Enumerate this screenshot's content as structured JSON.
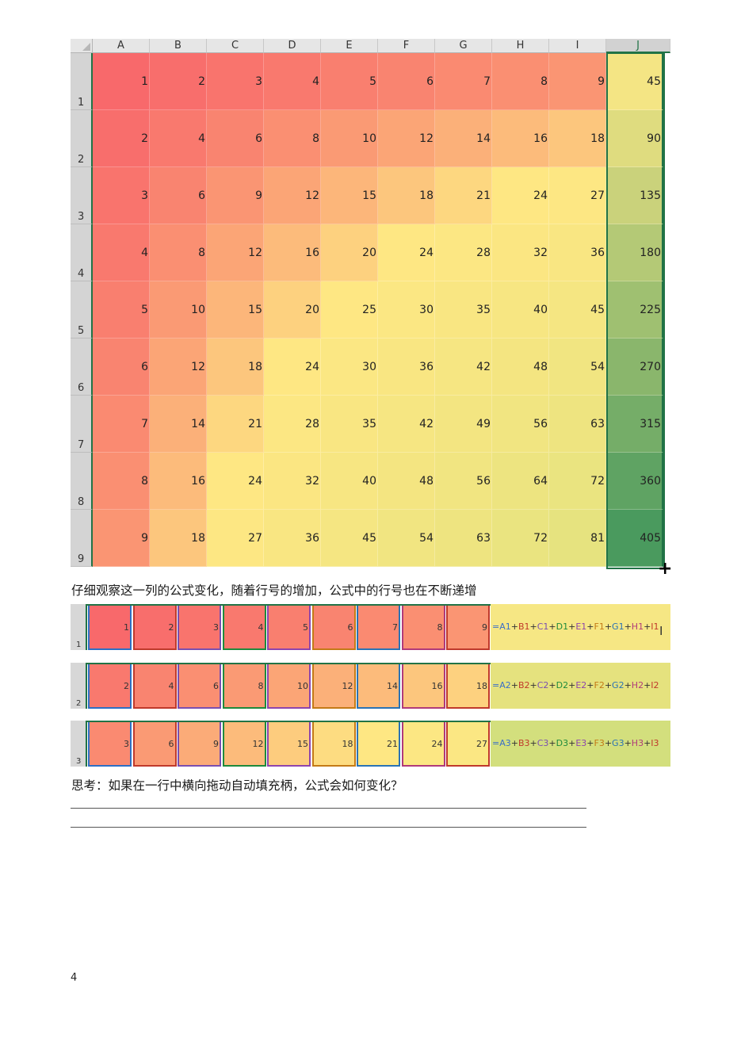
{
  "sheet": {
    "columns": [
      "A",
      "B",
      "C",
      "D",
      "E",
      "F",
      "G",
      "H",
      "I",
      "J"
    ],
    "rows": [
      "1",
      "2",
      "3",
      "4",
      "5",
      "6",
      "7",
      "8",
      "9"
    ],
    "values": [
      [
        1,
        2,
        3,
        4,
        5,
        6,
        7,
        8,
        9,
        45
      ],
      [
        2,
        4,
        6,
        8,
        10,
        12,
        14,
        16,
        18,
        90
      ],
      [
        3,
        6,
        9,
        12,
        15,
        18,
        21,
        24,
        27,
        135
      ],
      [
        4,
        8,
        12,
        16,
        20,
        24,
        28,
        32,
        36,
        180
      ],
      [
        5,
        10,
        15,
        20,
        25,
        30,
        35,
        40,
        45,
        225
      ],
      [
        6,
        12,
        18,
        24,
        30,
        36,
        42,
        48,
        54,
        270
      ],
      [
        7,
        14,
        21,
        28,
        35,
        42,
        49,
        56,
        63,
        315
      ],
      [
        8,
        16,
        24,
        32,
        40,
        48,
        56,
        64,
        72,
        360
      ],
      [
        9,
        18,
        27,
        36,
        45,
        54,
        63,
        72,
        81,
        405
      ]
    ],
    "selected_column": "J",
    "fill_handle_icon": "crosshair-plus-icon",
    "colors": {
      "low": "#f8696b",
      "mid": "#fee783",
      "sum_low": "#f4e584",
      "sum_high": "#4a9a5e",
      "selection": "#217346"
    }
  },
  "text1": "仔细观察这一列的公式变化，随着行号的增加，公式中的行号也在不断递增",
  "strips": [
    {
      "row": "1",
      "values": [
        1,
        2,
        3,
        4,
        5,
        6,
        7,
        8,
        9
      ],
      "formula_parts": [
        "=A1",
        "+",
        "B1",
        "+",
        "C1",
        "+",
        "D1",
        "+",
        "E1",
        "+",
        "F1",
        "+",
        "G1",
        "+",
        "H1",
        "+",
        "I1"
      ],
      "formula_bg": "#f6e784"
    },
    {
      "row": "2",
      "values": [
        2,
        4,
        6,
        8,
        10,
        12,
        14,
        16,
        18
      ],
      "formula_parts": [
        "=A2",
        "+",
        "B2",
        "+",
        "C2",
        "+",
        "D2",
        "+",
        "E2",
        "+",
        "F2",
        "+",
        "G2",
        "+",
        "H2",
        "+",
        "I2"
      ],
      "formula_bg": "#e5e27e"
    },
    {
      "row": "3",
      "values": [
        3,
        6,
        9,
        12,
        15,
        18,
        21,
        24,
        27
      ],
      "formula_parts": [
        "=A3",
        "+",
        "B3",
        "+",
        "C3",
        "+",
        "D3",
        "+",
        "E3",
        "+",
        "F3",
        "+",
        "G3",
        "+",
        "H3",
        "+",
        "I3"
      ],
      "formula_bg": "#d3df7d"
    }
  ],
  "ref_colors": [
    "#3a6fc8",
    "#c0392b",
    "#7a4fb0",
    "#1e8a3c",
    "#8e44ad",
    "#c47a16",
    "#2a73b5",
    "#b03a7a",
    "#c0392b"
  ],
  "text_cursor_icon": "text-cursor-icon",
  "text2": "思考：如果在一行中横向拖动自动填充柄，公式会如何变化？",
  "page_number": "4"
}
